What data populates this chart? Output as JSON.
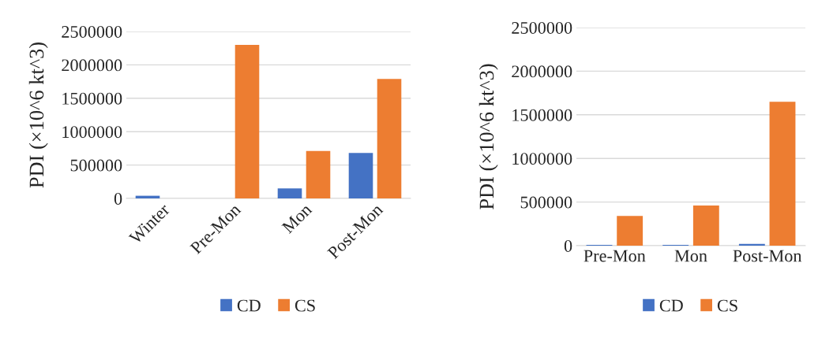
{
  "chart_data": [
    {
      "type": "bar",
      "categories": [
        "Winter",
        "Pre-Mon",
        "Mon",
        "Post-Mon"
      ],
      "ylabel": "PDI (×10^6 kt^3)",
      "ylim": [
        0,
        2500000
      ],
      "yticks": [
        0,
        500000,
        1000000,
        1500000,
        2000000,
        2500000
      ],
      "grid": "y",
      "legend": "bottom",
      "series": [
        {
          "name": "CD",
          "color": "#4472c4",
          "values": [
            40000,
            null,
            150000,
            680000
          ]
        },
        {
          "name": "CS",
          "color": "#ed7d31",
          "values": [
            null,
            2300000,
            710000,
            1790000
          ]
        }
      ]
    },
    {
      "type": "bar",
      "categories": [
        "Pre-Mon",
        "Mon",
        "Post-Mon"
      ],
      "ylabel": "PDI (×10^6 kt^3)",
      "ylim": [
        0,
        2500000
      ],
      "yticks": [
        0,
        500000,
        1000000,
        1500000,
        2000000,
        2500000
      ],
      "grid": "y",
      "legend": "bottom",
      "series": [
        {
          "name": "CD",
          "color": "#4472c4",
          "values": [
            10000,
            10000,
            20000
          ]
        },
        {
          "name": "CS",
          "color": "#ed7d31",
          "values": [
            340000,
            460000,
            1650000
          ]
        }
      ]
    }
  ]
}
